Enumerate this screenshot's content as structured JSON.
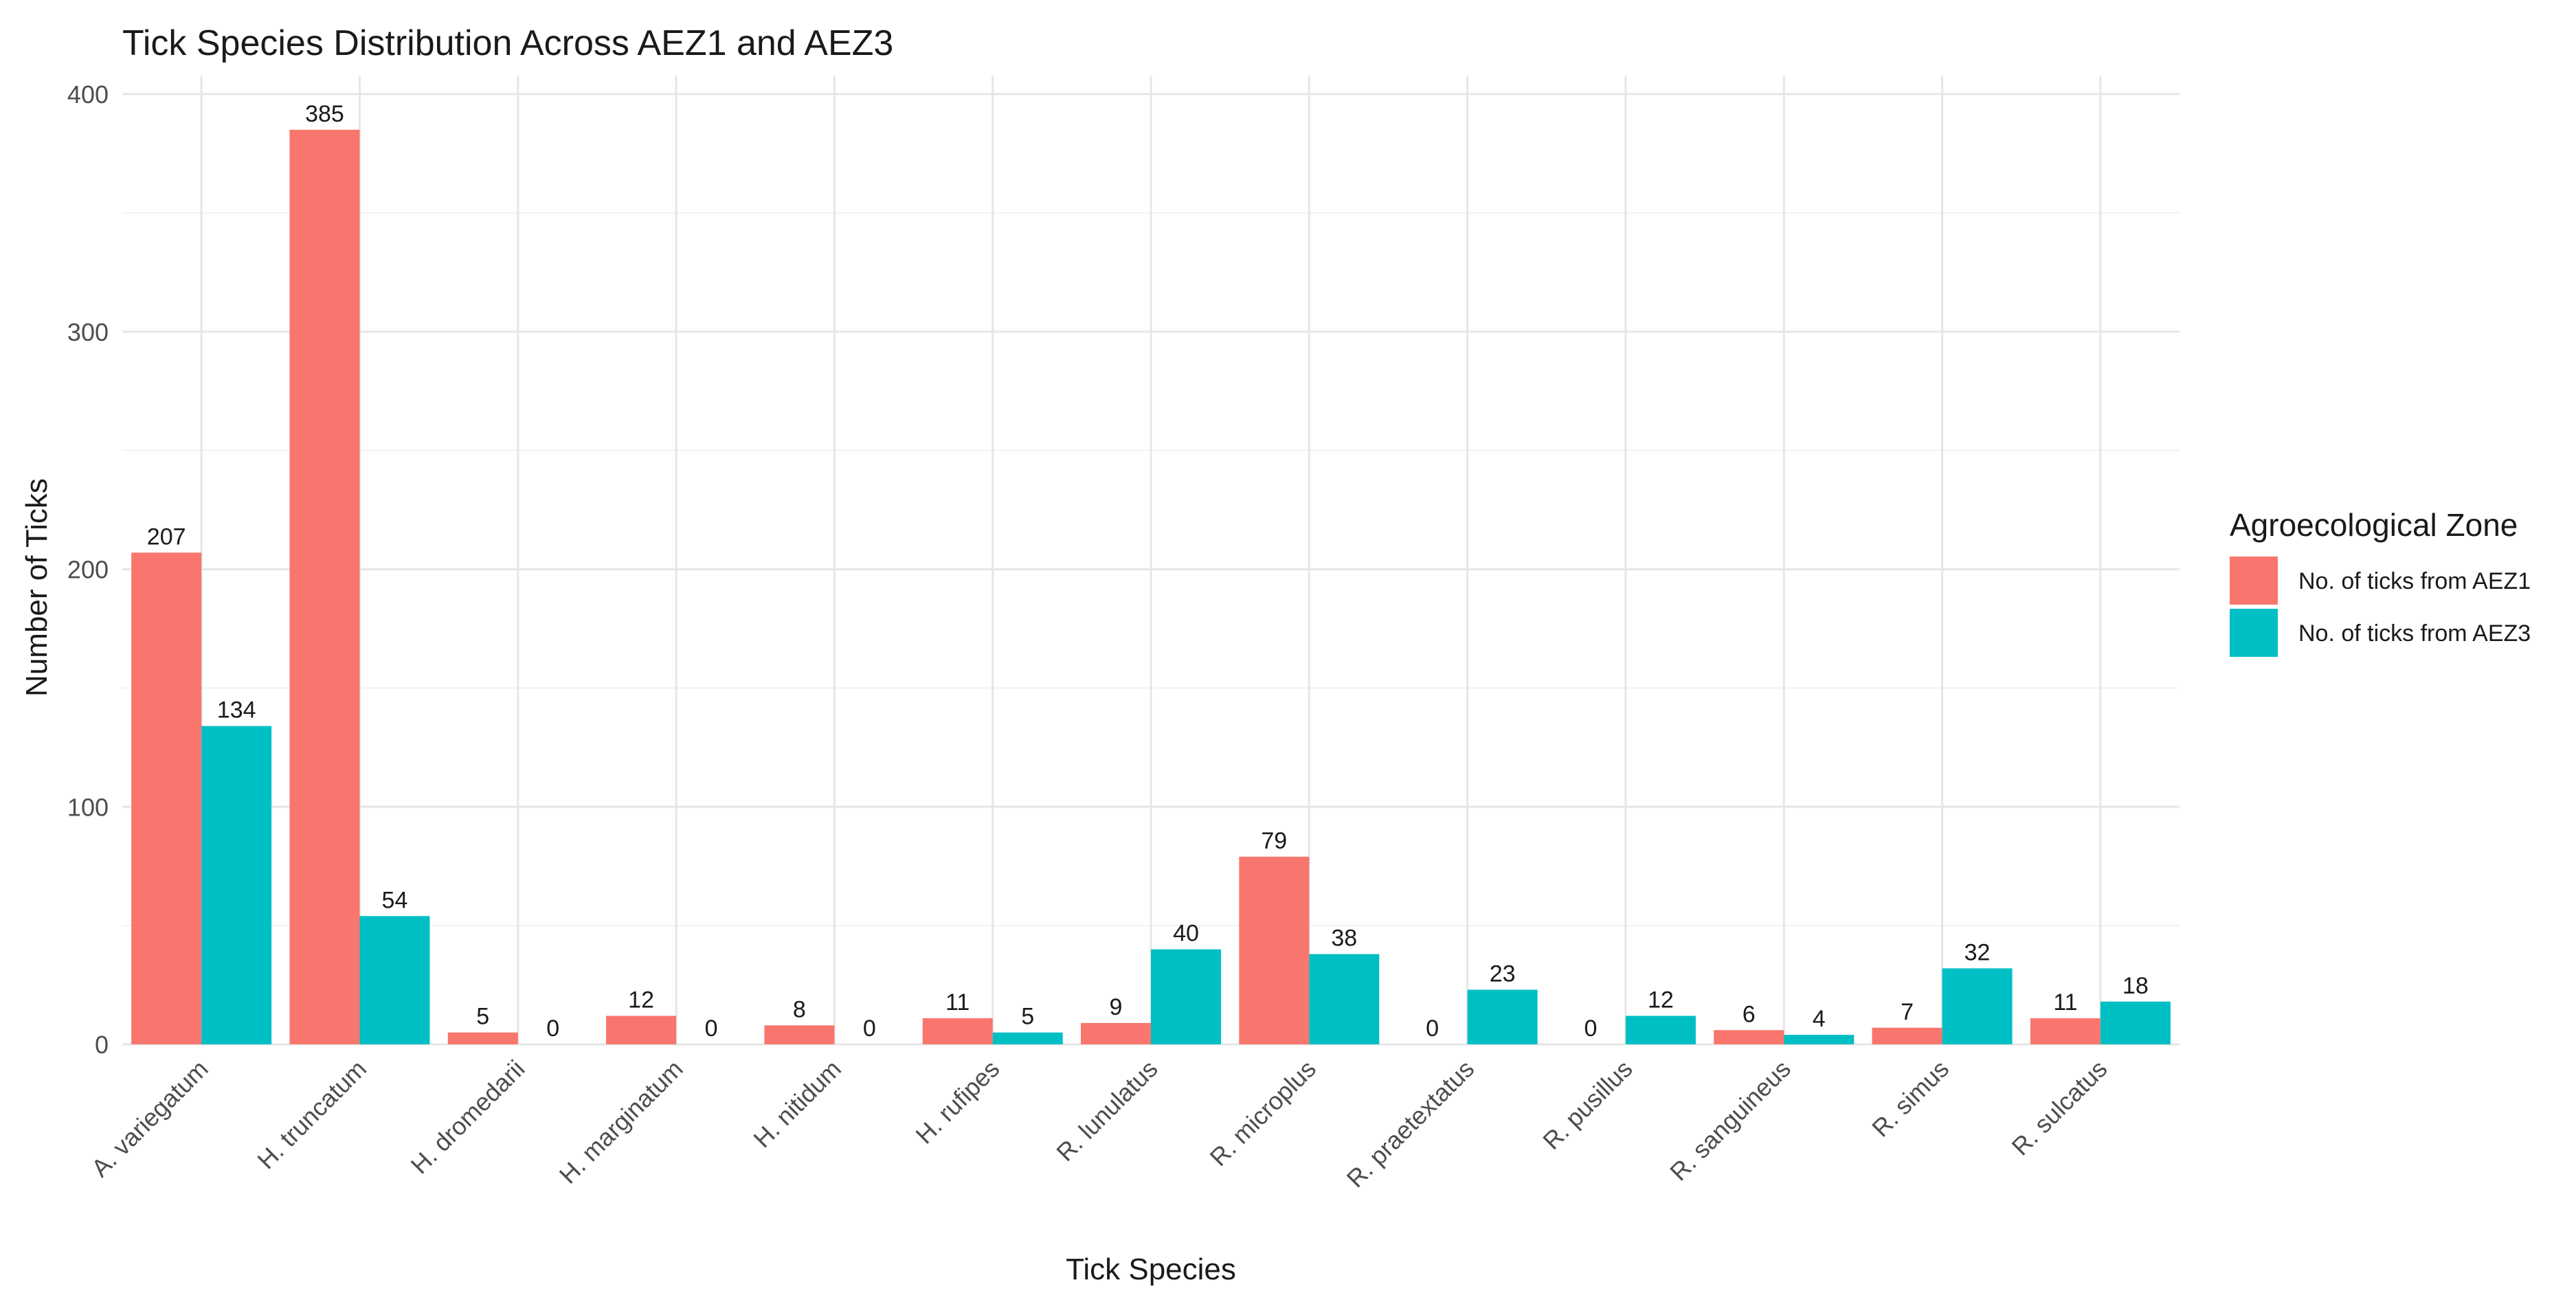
{
  "chart_data": {
    "type": "bar",
    "title": "Tick Species Distribution Across AEZ1 and AEZ3",
    "xlabel": "Tick Species",
    "ylabel": "Number of Ticks",
    "ylim": [
      0,
      400
    ],
    "yticks": [
      "0",
      "100",
      "200",
      "300",
      "400"
    ],
    "grid": true,
    "legend_position": "right",
    "legend_title": "Agroecological Zone",
    "categories": [
      "A. variegatum",
      "H. truncatum",
      "H. dromedarii",
      "H. marginatum",
      "H. nitidum",
      "H. rufipes",
      "R. lunulatus",
      "R. microplus",
      "R. praetextatus",
      "R. pusillus",
      "R. sanguineus",
      "R. simus",
      "R. sulcatus"
    ],
    "series": [
      {
        "name": "No. of ticks from AEZ1",
        "color": "#F8766D",
        "values": [
          207,
          385,
          5,
          12,
          8,
          11,
          9,
          79,
          0,
          0,
          6,
          7,
          11
        ]
      },
      {
        "name": "No. of ticks from AEZ3",
        "color": "#00BFC4",
        "values": [
          134,
          54,
          0,
          0,
          0,
          5,
          40,
          38,
          23,
          12,
          4,
          32,
          18
        ]
      }
    ]
  }
}
